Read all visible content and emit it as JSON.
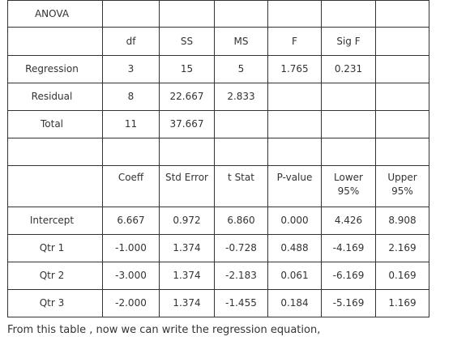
{
  "anova": {
    "title": "ANOVA",
    "headers": [
      "df",
      "SS",
      "MS",
      "F",
      "Sig F"
    ],
    "rows": [
      {
        "label": "Regression",
        "values": [
          "3",
          "15",
          "5",
          "1.765",
          "0.231"
        ]
      },
      {
        "label": "Residual",
        "values": [
          "8",
          "22.667",
          "2.833",
          "",
          ""
        ]
      },
      {
        "label": "Total",
        "values": [
          "11",
          "37.667",
          "",
          "",
          ""
        ]
      }
    ]
  },
  "coefficients": {
    "headers": [
      "Coeff",
      "Std Error",
      "t Stat",
      "P-value",
      "Lower 95%",
      "Upper 95%"
    ],
    "rows": [
      {
        "label": "Intercept",
        "values": [
          "6.667",
          "0.972",
          "6.860",
          "0.000",
          "4.426",
          "8.908"
        ]
      },
      {
        "label": "Qtr 1",
        "values": [
          "-1.000",
          "1.374",
          "-0.728",
          "0.488",
          "-4.169",
          "2.169"
        ]
      },
      {
        "label": "Qtr 2",
        "values": [
          "-3.000",
          "1.374",
          "-2.183",
          "0.061",
          "-6.169",
          "0.169"
        ]
      },
      {
        "label": "Qtr 3",
        "values": [
          "-2.000",
          "1.374",
          "-1.455",
          "0.184",
          "-5.169",
          "1.169"
        ]
      }
    ]
  },
  "footer": {
    "text": "From this table , now we can write the regression equation,"
  }
}
